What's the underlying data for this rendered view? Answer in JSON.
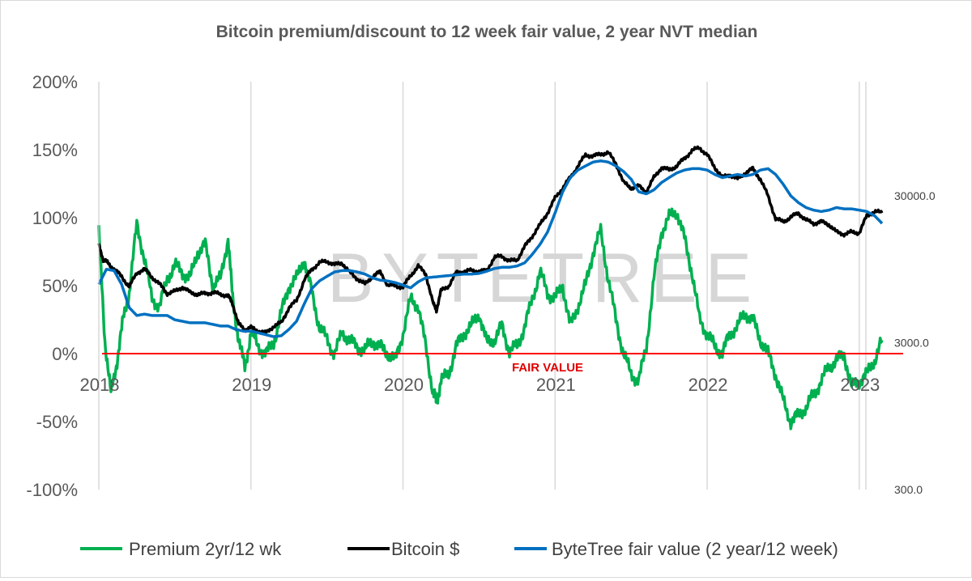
{
  "chart_data": {
    "type": "line",
    "title": "Bitcoin premium/discount to 12 week fair value, 2 year NVT median",
    "xlabel": "",
    "ylabel": "",
    "x_ticks": [
      "2018",
      "2019",
      "2020",
      "2021",
      "2022",
      "2023"
    ],
    "y_left": {
      "ticks": [
        "200%",
        "150%",
        "100%",
        "50%",
        "0%",
        "-50%",
        "-100%"
      ],
      "values": [
        200,
        150,
        100,
        50,
        0,
        -50,
        -100
      ],
      "ylim": [
        -100,
        200
      ]
    },
    "y_right": {
      "scale": "log",
      "ticks": [
        "30000.0",
        "3000.0",
        "300.0"
      ],
      "values": [
        30000,
        3000,
        300
      ]
    },
    "reference_line": {
      "value": 0,
      "label": "FAIR VALUE",
      "color": "#ff0000"
    },
    "watermark": "BYTETREE",
    "grid": "vertical-years",
    "legend_position": "bottom",
    "series": [
      {
        "name": "Premium 2yr/12 wk",
        "axis": "left",
        "color": "#00b050",
        "x": [
          2018.0,
          2018.04,
          2018.08,
          2018.12,
          2018.16,
          2018.2,
          2018.25,
          2018.3,
          2018.35,
          2018.4,
          2018.45,
          2018.5,
          2018.55,
          2018.6,
          2018.65,
          2018.7,
          2018.75,
          2018.8,
          2018.85,
          2018.88,
          2018.92,
          2018.96,
          2019.0,
          2019.05,
          2019.1,
          2019.15,
          2019.2,
          2019.25,
          2019.3,
          2019.35,
          2019.4,
          2019.45,
          2019.5,
          2019.55,
          2019.6,
          2019.65,
          2019.7,
          2019.75,
          2019.8,
          2019.85,
          2019.9,
          2019.95,
          2020.0,
          2020.05,
          2020.1,
          2020.15,
          2020.2,
          2020.22,
          2020.25,
          2020.3,
          2020.35,
          2020.4,
          2020.45,
          2020.5,
          2020.55,
          2020.6,
          2020.65,
          2020.7,
          2020.75,
          2020.8,
          2020.85,
          2020.9,
          2020.95,
          2021.0,
          2021.05,
          2021.1,
          2021.15,
          2021.2,
          2021.25,
          2021.3,
          2021.35,
          2021.4,
          2021.45,
          2021.5,
          2021.55,
          2021.6,
          2021.65,
          2021.7,
          2021.75,
          2021.8,
          2021.85,
          2021.9,
          2021.95,
          2022.0,
          2022.05,
          2022.1,
          2022.15,
          2022.2,
          2022.25,
          2022.3,
          2022.35,
          2022.4,
          2022.45,
          2022.5,
          2022.55,
          2022.6,
          2022.65,
          2022.7,
          2022.75,
          2022.8,
          2022.85,
          2022.9,
          2022.95,
          2023.0,
          2023.05,
          2023.1,
          2023.15
        ],
        "values": [
          90,
          10,
          -30,
          -5,
          25,
          45,
          95,
          70,
          40,
          35,
          55,
          65,
          60,
          55,
          75,
          80,
          50,
          55,
          85,
          40,
          10,
          -10,
          15,
          5,
          0,
          8,
          30,
          50,
          55,
          70,
          45,
          20,
          10,
          0,
          15,
          10,
          5,
          2,
          10,
          5,
          0,
          -5,
          15,
          40,
          35,
          5,
          -30,
          -35,
          -20,
          -15,
          5,
          15,
          20,
          30,
          8,
          10,
          20,
          2,
          5,
          20,
          40,
          60,
          45,
          40,
          50,
          20,
          35,
          50,
          75,
          90,
          55,
          25,
          0,
          -15,
          -20,
          5,
          55,
          90,
          100,
          105,
          85,
          60,
          25,
          15,
          5,
          0,
          15,
          20,
          30,
          25,
          10,
          0,
          -15,
          -35,
          -50,
          -45,
          -40,
          -30,
          -20,
          -10,
          -5,
          0,
          -25,
          -20,
          -15,
          -5,
          10
        ]
      },
      {
        "name": "Bitcoin $",
        "axis": "right",
        "color": "#000000",
        "x": [
          2018.0,
          2018.03,
          2018.06,
          2018.1,
          2018.15,
          2018.2,
          2018.25,
          2018.3,
          2018.35,
          2018.4,
          2018.45,
          2018.5,
          2018.55,
          2018.6,
          2018.65,
          2018.7,
          2018.75,
          2018.8,
          2018.85,
          2018.88,
          2018.92,
          2018.96,
          2019.0,
          2019.05,
          2019.1,
          2019.15,
          2019.2,
          2019.25,
          2019.3,
          2019.35,
          2019.4,
          2019.45,
          2019.5,
          2019.55,
          2019.6,
          2019.65,
          2019.7,
          2019.75,
          2019.8,
          2019.85,
          2019.9,
          2019.95,
          2020.0,
          2020.05,
          2020.1,
          2020.15,
          2020.2,
          2020.22,
          2020.25,
          2020.3,
          2020.35,
          2020.4,
          2020.45,
          2020.5,
          2020.55,
          2020.6,
          2020.65,
          2020.7,
          2020.75,
          2020.8,
          2020.85,
          2020.9,
          2020.95,
          2021.0,
          2021.05,
          2021.1,
          2021.15,
          2021.2,
          2021.25,
          2021.3,
          2021.35,
          2021.4,
          2021.45,
          2021.5,
          2021.55,
          2021.6,
          2021.65,
          2021.7,
          2021.75,
          2021.8,
          2021.85,
          2021.9,
          2021.95,
          2022.0,
          2022.05,
          2022.1,
          2022.15,
          2022.2,
          2022.25,
          2022.3,
          2022.35,
          2022.4,
          2022.45,
          2022.5,
          2022.55,
          2022.6,
          2022.65,
          2022.7,
          2022.75,
          2022.8,
          2022.85,
          2022.9,
          2022.95,
          2023.0,
          2023.05,
          2023.1,
          2023.15
        ],
        "values": [
          14000,
          11000,
          10500,
          9500,
          8500,
          7200,
          9000,
          9500,
          8400,
          7500,
          6500,
          6700,
          7200,
          6600,
          6400,
          6500,
          6600,
          6400,
          6300,
          5500,
          4000,
          3700,
          3800,
          3600,
          3500,
          3900,
          4100,
          5200,
          5800,
          8000,
          9500,
          10500,
          10800,
          10200,
          10500,
          9000,
          8200,
          7500,
          8500,
          9100,
          7400,
          7300,
          7200,
          8600,
          10000,
          8800,
          5500,
          5000,
          6800,
          7300,
          9000,
          9200,
          9300,
          9200,
          9300,
          11400,
          11700,
          10800,
          11000,
          13500,
          16000,
          19000,
          23000,
          29000,
          34000,
          40000,
          48000,
          57000,
          56000,
          58000,
          59000,
          50000,
          37000,
          34000,
          35000,
          32000,
          40000,
          47000,
          45000,
          48000,
          54000,
          61000,
          64000,
          57000,
          47000,
          40000,
          42000,
          39000,
          43000,
          46000,
          39000,
          30000,
          21000,
          20000,
          21500,
          23000,
          20500,
          19500,
          20000,
          19200,
          17000,
          16500,
          17000,
          16800,
          22000,
          23500,
          23000
        ]
      },
      {
        "name": "ByteTree fair value (2 year/12 week)",
        "axis": "right",
        "color": "#0070c0",
        "x": [
          2018.0,
          2018.05,
          2018.1,
          2018.15,
          2018.2,
          2018.25,
          2018.3,
          2018.35,
          2018.4,
          2018.45,
          2018.5,
          2018.55,
          2018.6,
          2018.65,
          2018.7,
          2018.75,
          2018.8,
          2018.85,
          2018.9,
          2018.95,
          2019.0,
          2019.05,
          2019.1,
          2019.15,
          2019.2,
          2019.25,
          2019.3,
          2019.35,
          2019.4,
          2019.45,
          2019.5,
          2019.55,
          2019.6,
          2019.65,
          2019.7,
          2019.75,
          2019.8,
          2019.85,
          2019.9,
          2019.95,
          2020.0,
          2020.05,
          2020.1,
          2020.15,
          2020.2,
          2020.25,
          2020.3,
          2020.35,
          2020.4,
          2020.45,
          2020.5,
          2020.55,
          2020.6,
          2020.65,
          2020.7,
          2020.75,
          2020.8,
          2020.85,
          2020.9,
          2020.95,
          2021.0,
          2021.05,
          2021.1,
          2021.15,
          2021.2,
          2021.25,
          2021.3,
          2021.35,
          2021.4,
          2021.45,
          2021.5,
          2021.55,
          2021.6,
          2021.65,
          2021.7,
          2021.75,
          2021.8,
          2021.85,
          2021.9,
          2021.95,
          2022.0,
          2022.05,
          2022.1,
          2022.15,
          2022.2,
          2022.25,
          2022.3,
          2022.35,
          2022.4,
          2022.45,
          2022.5,
          2022.55,
          2022.6,
          2022.65,
          2022.7,
          2022.75,
          2022.8,
          2022.85,
          2022.9,
          2022.95,
          2023.0,
          2023.05,
          2023.1,
          2023.15
        ],
        "values": [
          7500,
          9500,
          9300,
          7500,
          5200,
          4600,
          4700,
          4600,
          4600,
          4600,
          4300,
          4200,
          4100,
          4100,
          4100,
          4000,
          3900,
          3900,
          3700,
          3600,
          3600,
          3500,
          3400,
          3300,
          3350,
          3700,
          4200,
          5500,
          7000,
          7900,
          8500,
          9100,
          9300,
          9300,
          9100,
          8800,
          8300,
          8000,
          7900,
          7700,
          7400,
          7100,
          7800,
          8300,
          8400,
          8500,
          8600,
          8700,
          8800,
          8800,
          8900,
          9200,
          9600,
          9800,
          9800,
          10000,
          10500,
          12000,
          14000,
          17000,
          23000,
          32000,
          40000,
          45000,
          48000,
          51000,
          52000,
          51000,
          48000,
          44000,
          39000,
          32000,
          31000,
          33000,
          37000,
          40000,
          43000,
          45000,
          46000,
          46000,
          45000,
          42000,
          40000,
          41000,
          42000,
          41000,
          42000,
          45000,
          46000,
          42000,
          36000,
          30000,
          27000,
          25000,
          24000,
          23500,
          24000,
          25000,
          24500,
          24500,
          24000,
          23500,
          22000,
          19500
        ]
      }
    ]
  }
}
